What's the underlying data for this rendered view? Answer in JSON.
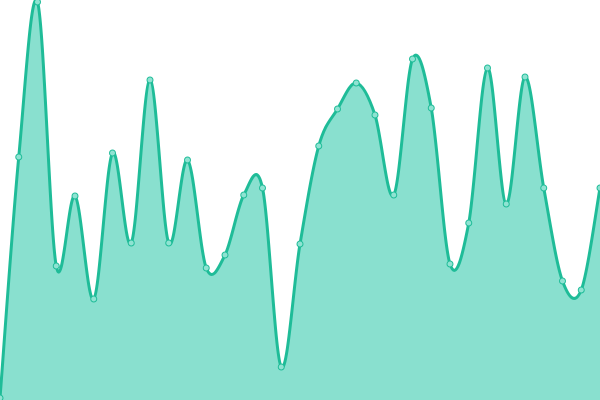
{
  "chart_data": {
    "type": "area",
    "title": "",
    "xlabel": "",
    "ylabel": "",
    "x": [
      0,
      1,
      2,
      3,
      4,
      5,
      6,
      7,
      8,
      9,
      10,
      11,
      12,
      13,
      14,
      15,
      16,
      17,
      18,
      19,
      20,
      21,
      22,
      23,
      24,
      25,
      26,
      27,
      28,
      29,
      30,
      31,
      32
    ],
    "values": [
      2,
      243,
      398,
      134,
      204,
      101,
      247,
      157,
      320,
      157,
      240,
      132,
      145,
      205,
      212,
      33,
      156,
      254,
      291,
      317,
      285,
      205,
      341,
      292,
      136,
      177,
      332,
      196,
      323,
      212,
      119,
      110,
      212
    ],
    "ylim": [
      0,
      400
    ],
    "grid": false,
    "axes_visible": false,
    "smooth": true,
    "colors": {
      "stroke": "#1fbc98",
      "fill": "#89e0cf",
      "marker_fill": "#8fe3d2",
      "marker_stroke": "#1fbc98"
    }
  }
}
